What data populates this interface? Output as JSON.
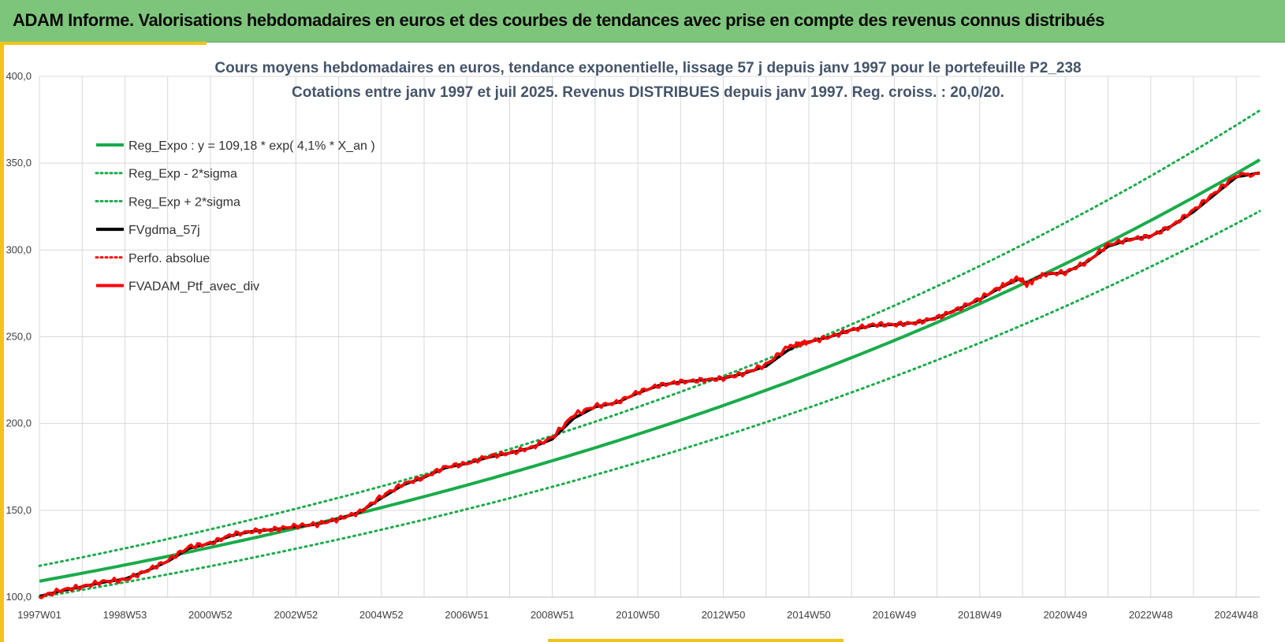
{
  "header": {
    "title": "ADAM Informe. Valorisations hebdomadaires en euros et des courbes de tendances avec prise en compte des revenus connus distribués"
  },
  "colors": {
    "header_bg": "#7dc57a",
    "accent": "#f0c419",
    "trend_green": "#1aab4a",
    "price_red": "#ff0000",
    "smooth_black": "#000000",
    "grid": "#d9d9d9"
  },
  "chart_data": {
    "type": "line",
    "title": "Cours moyens hebdomadaires  en euros, tendance exponentielle, lissage 57 j depuis janv 1997 pour le portefeuille P2_238",
    "subtitle": "Cotations entre janv 1997 et juil 2025. Revenus DISTRIBUES depuis janv 1997. Reg. croiss. : 20,0/20.",
    "xlabel": "",
    "ylabel": "",
    "ylim": [
      100,
      400
    ],
    "yticks": [
      "100,0",
      "150,0",
      "200,0",
      "250,0",
      "300,0",
      "350,0",
      "400,0"
    ],
    "xlim": [
      1997.0,
      2025.55
    ],
    "xtick_labels": [
      "1997W01",
      "1998W53",
      "2000W52",
      "2002W52",
      "2004W52",
      "2006W51",
      "2008W51",
      "2010W50",
      "2012W50",
      "2014W50",
      "2016W49",
      "2018W49",
      "2020W49",
      "2022W48",
      "2024W48"
    ],
    "grid": true,
    "legend_position": "top-left",
    "legend": [
      {
        "label": "Reg_Expo : y = 109,18 * exp( 4,1% *  X_an )",
        "style": "solid",
        "color": "#1aab4a"
      },
      {
        "label": "Reg_Exp - 2*sigma",
        "style": "dotted",
        "color": "#1aab4a"
      },
      {
        "label": "Reg_Exp + 2*sigma",
        "style": "dotted",
        "color": "#1aab4a"
      },
      {
        "label": "FVgdma_57j",
        "style": "solid",
        "color": "#000000"
      },
      {
        "label": "Perfo. absolue",
        "style": "dotted",
        "color": "#ff0000"
      },
      {
        "label": "FVADAM_Ptf_avec_div",
        "style": "solid",
        "color": "#ff0000"
      }
    ],
    "regression": {
      "a": 109.18,
      "rate": 0.041,
      "start_year": 1997.0,
      "end_year": 2025.55
    },
    "band": {
      "lower_start": 100.0,
      "upper_start": 118.0
    },
    "series": [
      {
        "name": "FVADAM_Ptf_avec_div",
        "x": [
          1997.0,
          1997.5,
          1998.0,
          1998.5,
          1999.0,
          1999.5,
          2000.0,
          2000.5,
          2001.0,
          2001.5,
          2002.0,
          2002.5,
          2003.0,
          2003.5,
          2004.0,
          2004.5,
          2005.0,
          2005.5,
          2006.0,
          2006.5,
          2007.0,
          2007.5,
          2008.0,
          2008.5,
          2009.0,
          2009.5,
          2010.0,
          2010.5,
          2011.0,
          2011.5,
          2012.0,
          2012.5,
          2013.0,
          2013.5,
          2014.0,
          2014.5,
          2014.8,
          2015.0,
          2015.5,
          2016.0,
          2016.5,
          2017.0,
          2017.5,
          2018.0,
          2018.5,
          2019.0,
          2019.5,
          2019.9,
          2020.1,
          2020.5,
          2021.0,
          2021.5,
          2022.0,
          2022.5,
          2023.0,
          2023.5,
          2024.0,
          2024.5,
          2025.0,
          2025.55
        ],
        "values": [
          100,
          104,
          106,
          109,
          110,
          115,
          121,
          129,
          131,
          136,
          138,
          139,
          141,
          142,
          145,
          149,
          158,
          165,
          169,
          175,
          177,
          181,
          183,
          186,
          192,
          205,
          210,
          212,
          218,
          222,
          224,
          225,
          226,
          229,
          234,
          244,
          246,
          247,
          250,
          254,
          257,
          257,
          258,
          261,
          266,
          272,
          279,
          284,
          280,
          286,
          287,
          293,
          303,
          306,
          308,
          314,
          323,
          333,
          343,
          344
        ]
      },
      {
        "name": "FVgdma_57j",
        "x": [
          1997.0,
          1997.5,
          1998.0,
          1998.5,
          1999.0,
          1999.5,
          2000.0,
          2000.5,
          2001.0,
          2001.5,
          2002.0,
          2002.5,
          2003.0,
          2003.5,
          2004.0,
          2004.5,
          2005.0,
          2005.5,
          2006.0,
          2006.5,
          2007.0,
          2007.5,
          2008.0,
          2008.5,
          2009.0,
          2009.5,
          2010.0,
          2010.5,
          2011.0,
          2011.5,
          2012.0,
          2012.5,
          2013.0,
          2013.5,
          2014.0,
          2014.5,
          2014.8,
          2015.0,
          2015.5,
          2016.0,
          2016.5,
          2017.0,
          2017.5,
          2018.0,
          2018.5,
          2019.0,
          2019.5,
          2019.9,
          2020.1,
          2020.5,
          2021.0,
          2021.5,
          2022.0,
          2022.5,
          2023.0,
          2023.5,
          2024.0,
          2024.5,
          2025.0,
          2025.55
        ],
        "values": [
          100.5,
          103.5,
          106,
          108.5,
          110.5,
          115,
          120.5,
          128,
          131,
          135.5,
          138,
          139,
          140.5,
          142,
          145,
          149,
          157,
          164.5,
          169,
          174.5,
          177,
          180.5,
          183,
          186,
          191,
          203,
          209.5,
          212,
          217.5,
          222,
          224,
          225,
          226,
          229,
          233,
          242,
          246,
          247,
          250,
          254,
          256.5,
          257,
          258,
          261,
          266,
          271.5,
          278.5,
          283,
          281,
          286,
          287,
          293,
          302,
          306,
          308,
          314,
          322,
          332,
          342,
          344.5
        ]
      }
    ]
  }
}
